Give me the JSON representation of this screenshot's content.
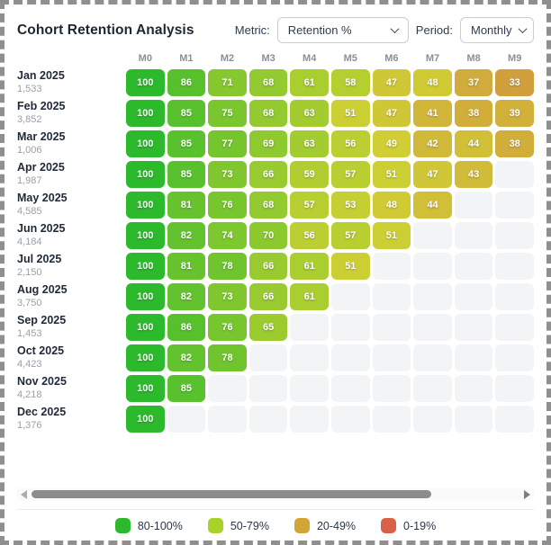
{
  "header": {
    "title": "Cohort Retention Analysis",
    "metric_label": "Metric:",
    "metric_value": "Retention %",
    "period_label": "Period:",
    "period_value": "Monthly"
  },
  "chart_data": {
    "type": "heatmap",
    "title": "Cohort Retention Analysis",
    "columns": [
      "M0",
      "M1",
      "M2",
      "M3",
      "M4",
      "M5",
      "M6",
      "M7",
      "M8",
      "M9"
    ],
    "rows": [
      {
        "cohort": "Jan 2025",
        "size": "1,533",
        "values": [
          100,
          86,
          71,
          68,
          61,
          58,
          47,
          48,
          37,
          33
        ]
      },
      {
        "cohort": "Feb 2025",
        "size": "3,852",
        "values": [
          100,
          85,
          75,
          68,
          63,
          51,
          47,
          41,
          38,
          39
        ]
      },
      {
        "cohort": "Mar 2025",
        "size": "1,006",
        "values": [
          100,
          85,
          77,
          69,
          63,
          56,
          49,
          42,
          44,
          38
        ]
      },
      {
        "cohort": "Apr 2025",
        "size": "1,987",
        "values": [
          100,
          85,
          73,
          66,
          59,
          57,
          51,
          47,
          43
        ]
      },
      {
        "cohort": "May 2025",
        "size": "4,585",
        "values": [
          100,
          81,
          76,
          68,
          57,
          53,
          48,
          44
        ]
      },
      {
        "cohort": "Jun 2025",
        "size": "4,184",
        "values": [
          100,
          82,
          74,
          70,
          56,
          57,
          51
        ]
      },
      {
        "cohort": "Jul 2025",
        "size": "2,150",
        "values": [
          100,
          81,
          78,
          66,
          61,
          51
        ]
      },
      {
        "cohort": "Aug 2025",
        "size": "3,750",
        "values": [
          100,
          82,
          73,
          66,
          61
        ]
      },
      {
        "cohort": "Sep 2025",
        "size": "1,453",
        "values": [
          100,
          86,
          76,
          65
        ]
      },
      {
        "cohort": "Oct 2025",
        "size": "4,423",
        "values": [
          100,
          82,
          78
        ]
      },
      {
        "cohort": "Nov 2025",
        "size": "4,218",
        "values": [
          100,
          85
        ]
      },
      {
        "cohort": "Dec 2025",
        "size": "1,376",
        "values": [
          100
        ]
      }
    ],
    "legend_position": "bottom",
    "empty_cell_color": "#f3f4f6"
  },
  "legend": {
    "items": [
      {
        "label": "80-100%",
        "color": "#2db92d"
      },
      {
        "label": "50-79%",
        "color": "#a8d227"
      },
      {
        "label": "20-49%",
        "color": "#d2a536"
      },
      {
        "label": "0-19%",
        "color": "#d9614a"
      }
    ]
  }
}
